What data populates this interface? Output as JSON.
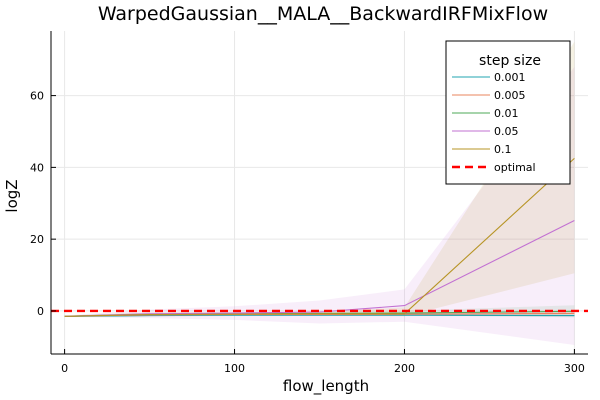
{
  "chart_data": {
    "type": "line",
    "title": "WarpedGaussian__MALA__BackwardIRFMixFlow",
    "xlabel": "flow_length",
    "ylabel": "logZ",
    "x": [
      0,
      50,
      100,
      150,
      200,
      300
    ],
    "xlim": [
      -8,
      308
    ],
    "ylim": [
      -12,
      78
    ],
    "xticks": [
      0,
      100,
      200,
      300
    ],
    "yticks": [
      0,
      20,
      40,
      60
    ],
    "grid": true,
    "legend": {
      "title": "step size",
      "position": "top-right"
    },
    "series": [
      {
        "name": "0.001",
        "color": "#20a6b0",
        "values": [
          -1.5,
          -1.3,
          -1.2,
          -1.2,
          -1.2,
          -1.3
        ],
        "lower": [
          -1.7,
          -1.5,
          -1.4,
          -1.4,
          -1.4,
          -1.5
        ],
        "upper": [
          -1.3,
          -1.1,
          -1.0,
          -1.0,
          -1.0,
          -1.1
        ]
      },
      {
        "name": "0.005",
        "color": "#e8845e",
        "values": [
          -1.5,
          -1.1,
          -1.0,
          -1.0,
          -0.9,
          -0.7
        ],
        "lower": [
          -1.7,
          -1.4,
          -1.3,
          -1.3,
          -1.3,
          -1.6
        ],
        "upper": [
          -1.3,
          -0.8,
          -0.7,
          -0.7,
          -0.5,
          0.2
        ]
      },
      {
        "name": "0.01",
        "color": "#4daa57",
        "values": [
          -1.5,
          -0.9,
          -0.8,
          -0.7,
          -0.6,
          -0.1
        ],
        "lower": [
          -1.7,
          -1.3,
          -1.2,
          -1.2,
          -1.2,
          -1.8
        ],
        "upper": [
          -1.3,
          -0.5,
          -0.4,
          -0.2,
          0.0,
          1.6
        ]
      },
      {
        "name": "0.05",
        "color": "#c271d2",
        "values": [
          -1.5,
          -0.8,
          -0.6,
          -0.3,
          1.5,
          25.2
        ],
        "lower": [
          -1.7,
          -2.0,
          -2.5,
          -3.5,
          -3.0,
          -9.5
        ],
        "upper": [
          -1.3,
          0.4,
          1.3,
          2.9,
          6.0,
          68.0
        ]
      },
      {
        "name": "0.1",
        "color": "#b79425",
        "values": [
          -1.5,
          -1.0,
          -0.9,
          -0.8,
          -0.8,
          42.5
        ],
        "lower": [
          -1.7,
          -1.5,
          -1.4,
          -1.3,
          -1.5,
          10.5
        ],
        "upper": [
          -1.3,
          -0.5,
          -0.4,
          -0.3,
          1.0,
          75.0
        ]
      }
    ],
    "reference": {
      "name": "optimal",
      "value": 0.0,
      "color": "#ff0000",
      "style": "dashed"
    }
  }
}
